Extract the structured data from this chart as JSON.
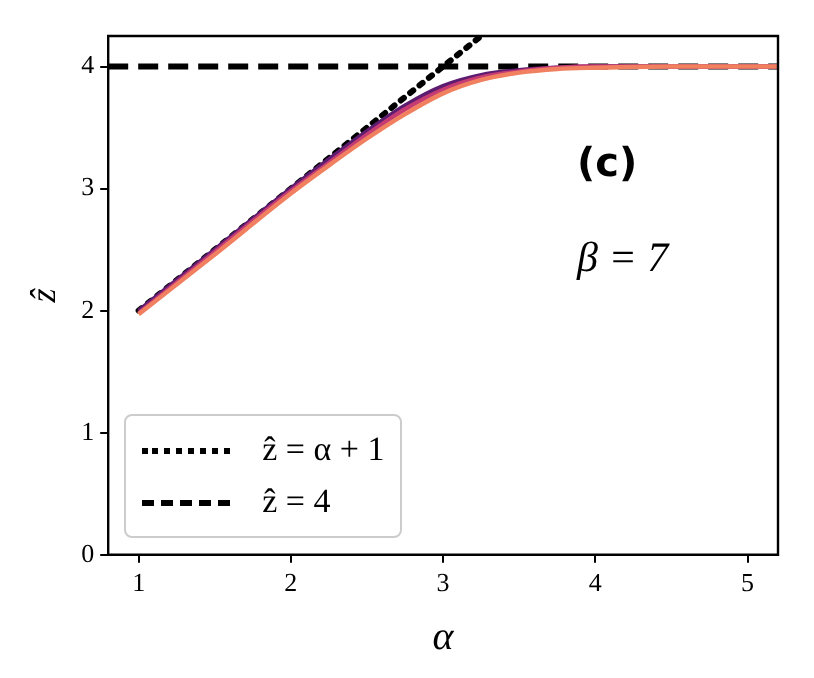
{
  "chart_data": {
    "type": "line",
    "xlabel": "α",
    "ylabel": "ẑ",
    "xlim": [
      0.8,
      5.2
    ],
    "ylim": [
      0,
      4.25
    ],
    "xticks": [
      1,
      2,
      3,
      4,
      5
    ],
    "yticks": [
      0,
      1,
      2,
      3,
      4
    ],
    "grid": false,
    "legend": "bottom left",
    "marker": "none",
    "annotations": [
      "(c)",
      "β = 7"
    ],
    "series": [
      {
        "color": "#f08060",
        "x": [
          1,
          1.5,
          2,
          2.25,
          2.5,
          2.75,
          3,
          3.25,
          3.5,
          3.75,
          4,
          4.5,
          5,
          5.2
        ],
        "values": [
          1.97,
          2.46,
          2.96,
          3.19,
          3.41,
          3.61,
          3.78,
          3.89,
          3.95,
          3.98,
          3.99,
          4,
          4,
          4
        ]
      },
      {
        "color": "#c43c73",
        "x": [
          1,
          1.5,
          2,
          2.25,
          2.5,
          2.75,
          3,
          3.25,
          3.5,
          3.75,
          4,
          4.5,
          5,
          5.2
        ],
        "values": [
          1.98,
          2.48,
          2.98,
          3.21,
          3.44,
          3.65,
          3.81,
          3.91,
          3.96,
          3.99,
          4,
          4,
          4,
          4
        ]
      },
      {
        "color": "#5d1c6f",
        "x": [
          1,
          1.5,
          2,
          2.25,
          2.5,
          2.75,
          3,
          3.25,
          3.5,
          3.75,
          4,
          4.5,
          5,
          5.2
        ],
        "values": [
          2,
          2.5,
          3,
          3.24,
          3.47,
          3.68,
          3.84,
          3.93,
          3.97,
          3.99,
          4,
          4,
          4,
          4
        ]
      },
      {
        "name": "ẑ = α + 1",
        "color": "#000000",
        "line_style": "dotted",
        "x": [
          1,
          3.25
        ],
        "values": [
          2,
          4.25
        ]
      },
      {
        "name": "ẑ = 4",
        "color": "#000000",
        "line_style": "dashed",
        "x": [
          0.8,
          5.2
        ],
        "values": [
          4,
          4
        ]
      }
    ]
  }
}
